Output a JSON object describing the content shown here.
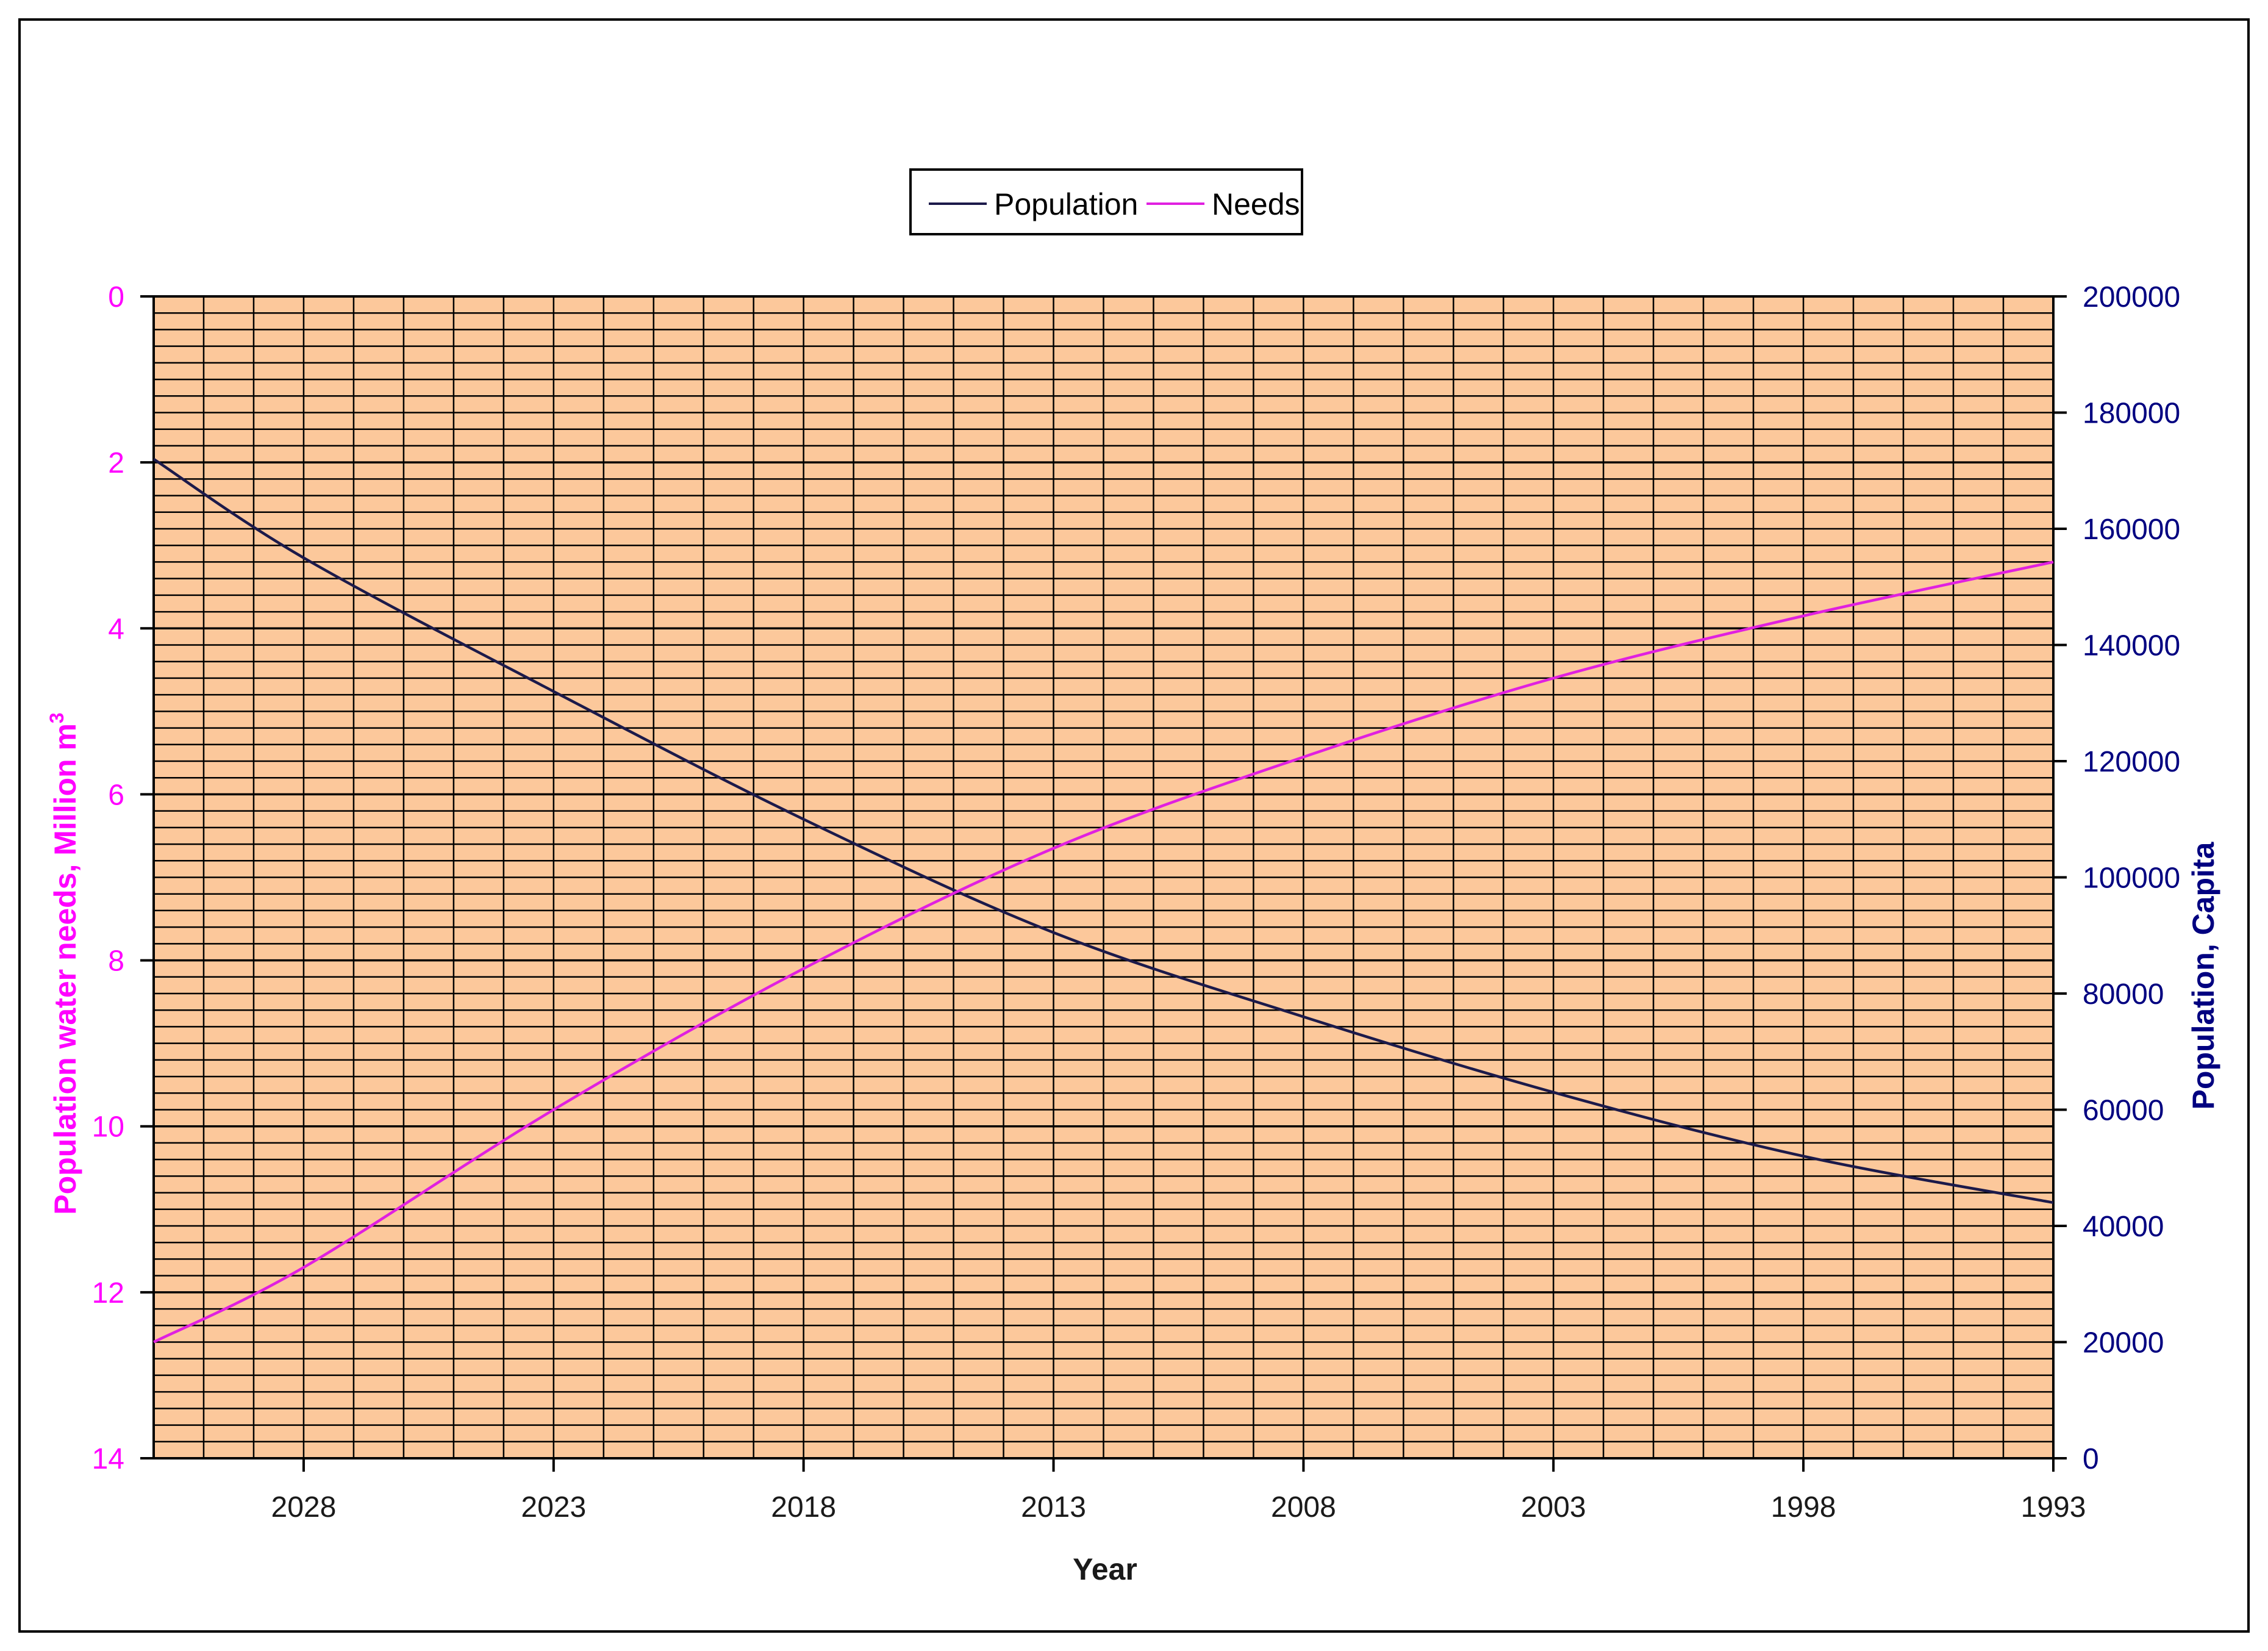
{
  "chart_data": {
    "type": "line",
    "title": "",
    "x_axis": {
      "label": "Year",
      "reversed": true,
      "range": [
        2031,
        1993
      ],
      "tick_labels": [
        2028,
        2023,
        2018,
        2013,
        2008,
        2003,
        1998,
        1993
      ]
    },
    "y_left": {
      "label": "Population water needs,  Million m",
      "label_superscript": "3",
      "reversed": true,
      "range": [
        0,
        14
      ],
      "tick_labels": [
        0,
        2,
        4,
        6,
        8,
        10,
        12,
        14
      ],
      "color": "#ff00ff"
    },
    "y_right": {
      "label": "Population, Capita",
      "range": [
        0,
        200000
      ],
      "tick_labels": [
        0,
        20000,
        40000,
        60000,
        80000,
        100000,
        120000,
        140000,
        160000,
        180000,
        200000
      ],
      "color": "#000080"
    },
    "grid": true,
    "plot_background": "#fcc89b",
    "legend": {
      "placement": "top-center",
      "entries": [
        {
          "name": "Population",
          "color": "#1c1a4a"
        },
        {
          "name": "Needs",
          "color": "#e020e0"
        }
      ]
    },
    "series": [
      {
        "name": "Population",
        "axis": "right",
        "color": "#1c1a4a",
        "x": [
          2031,
          2028,
          2023,
          2018,
          2013,
          2008,
          2003,
          1998,
          1993
        ],
        "values": [
          172000,
          155000,
          132000,
          110000,
          90500,
          76000,
          63000,
          52000,
          44000
        ]
      },
      {
        "name": "Needs",
        "axis": "left",
        "color": "#e020e0",
        "x": [
          2031,
          2028,
          2023,
          2018,
          2013,
          2008,
          2003,
          1998,
          1993
        ],
        "values": [
          12.6,
          11.7,
          9.8,
          8.1,
          6.65,
          5.55,
          4.6,
          3.85,
          3.2
        ]
      }
    ]
  }
}
